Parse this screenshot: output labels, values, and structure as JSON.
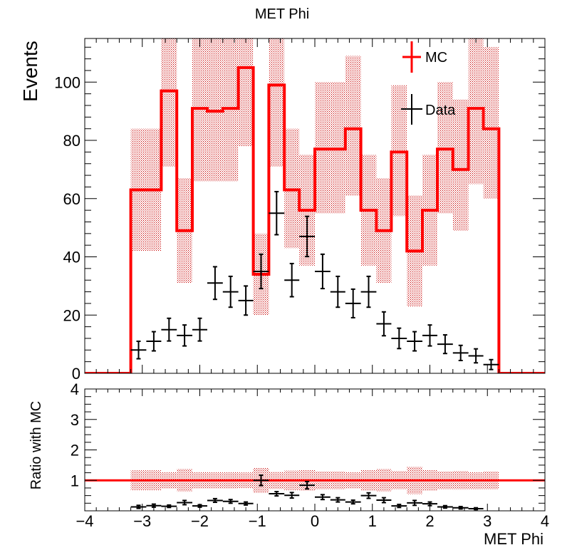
{
  "chart_data": [
    {
      "panel": "main",
      "type": "histogram",
      "title": "MET Phi",
      "ylabel": "Events",
      "xlim": [
        -4,
        4
      ],
      "ylim": [
        0,
        115
      ],
      "xticks": [
        -4,
        -3,
        -2,
        -1,
        0,
        1,
        2,
        3,
        4
      ],
      "yticks": [
        0,
        20,
        40,
        60,
        80,
        100
      ],
      "legend": {
        "position": "top-right",
        "entries": [
          "MC",
          "Data"
        ]
      },
      "bin_edges": [
        -3.2,
        -2.93,
        -2.67,
        -2.4,
        -2.13,
        -1.87,
        -1.6,
        -1.33,
        -1.07,
        -0.8,
        -0.53,
        -0.27,
        0,
        0.27,
        0.53,
        0.8,
        1.07,
        1.33,
        1.6,
        1.87,
        2.13,
        2.4,
        2.67,
        2.93,
        3.2
      ],
      "series": [
        {
          "name": "MC",
          "color": "#ff0000",
          "values": [
            63,
            63,
            97,
            49,
            91,
            90,
            91,
            105,
            34,
            99,
            63,
            56,
            77,
            77,
            84,
            56,
            49,
            76,
            42,
            56,
            77,
            70,
            91,
            84
          ],
          "band_low": [
            42,
            42,
            71,
            31,
            66,
            66,
            66,
            78,
            20,
            71,
            43,
            37,
            55,
            55,
            61,
            37,
            31,
            54,
            23,
            37,
            55,
            49,
            65,
            60
          ],
          "band_high": [
            84,
            84,
            116,
            67,
            116,
            116,
            116,
            116,
            48,
            116,
            84,
            75,
            100,
            100,
            109,
            75,
            67,
            99,
            61,
            75,
            100,
            94,
            116,
            112
          ]
        },
        {
          "name": "Data",
          "color": "#000000",
          "values": [
            8,
            11,
            15,
            13,
            15,
            31,
            28,
            25,
            35,
            55,
            32,
            47,
            35,
            28,
            24,
            28,
            17,
            12,
            11,
            13,
            10,
            7,
            6,
            3
          ],
          "errors": [
            3,
            3.3,
            3.9,
            3.6,
            3.9,
            5.6,
            5.3,
            5,
            5.9,
            7.4,
            5.7,
            6.9,
            5.9,
            5.3,
            4.9,
            5.3,
            4.1,
            3.5,
            3.3,
            3.6,
            3.2,
            2.6,
            2.4,
            1.7
          ]
        }
      ]
    },
    {
      "panel": "ratio",
      "type": "ratio",
      "xlabel": "MET Phi",
      "ylabel": "Ratio with MC",
      "xlim": [
        -4,
        4
      ],
      "ylim": [
        0,
        4
      ],
      "xticks": [
        -4,
        -3,
        -2,
        -1,
        0,
        1,
        2,
        3,
        4
      ],
      "yticks": [
        1,
        2,
        3,
        4
      ],
      "reference_line": 1,
      "band_low": [
        0.67,
        0.67,
        0.73,
        0.63,
        0.73,
        0.73,
        0.73,
        0.74,
        0.59,
        0.72,
        0.68,
        0.66,
        0.71,
        0.71,
        0.73,
        0.66,
        0.63,
        0.71,
        0.55,
        0.66,
        0.71,
        0.7,
        0.71,
        0.71
      ],
      "band_high": [
        1.33,
        1.33,
        1.27,
        1.37,
        1.27,
        1.27,
        1.27,
        1.26,
        1.41,
        1.28,
        1.32,
        1.34,
        1.29,
        1.29,
        1.27,
        1.34,
        1.37,
        1.3,
        1.45,
        1.34,
        1.29,
        1.3,
        1.27,
        1.29
      ],
      "values": [
        0.13,
        0.17,
        0.15,
        0.27,
        0.16,
        0.34,
        0.31,
        0.24,
        1.0,
        0.56,
        0.51,
        0.84,
        0.45,
        0.36,
        0.29,
        0.5,
        0.35,
        0.16,
        0.26,
        0.23,
        0.13,
        0.1,
        0.07,
        null
      ],
      "errors": [
        0.05,
        0.05,
        0.04,
        0.07,
        0.04,
        0.06,
        0.06,
        0.05,
        0.17,
        0.07,
        0.09,
        0.12,
        0.08,
        0.07,
        0.06,
        0.09,
        0.08,
        0.05,
        0.08,
        0.06,
        0.04,
        0.04,
        0.03,
        null
      ]
    }
  ]
}
